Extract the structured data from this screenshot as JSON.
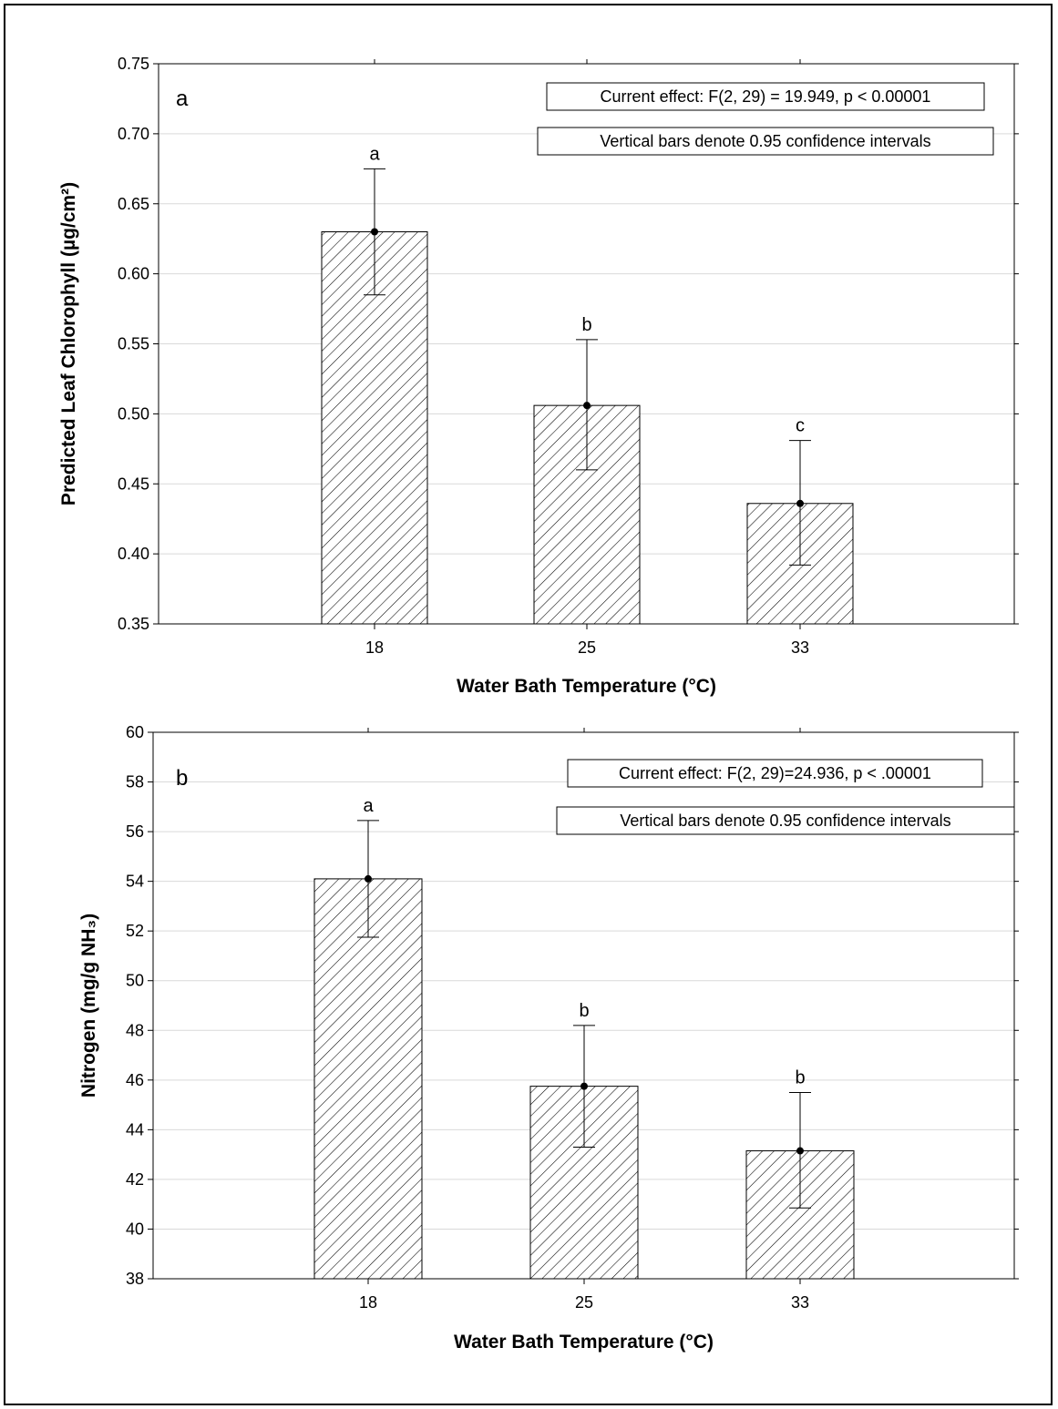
{
  "colors": {
    "frame": "#000000",
    "grid": "#d9d9d9",
    "bar_fill": "#ffffff",
    "bar_hatch": "#000000"
  },
  "chart_data": [
    {
      "type": "bar",
      "panel_label": "a",
      "categories": [
        "18",
        "25",
        "33"
      ],
      "values": [
        0.63,
        0.506,
        0.436
      ],
      "ci_low": [
        0.585,
        0.46,
        0.392
      ],
      "ci_high": [
        0.675,
        0.553,
        0.481
      ],
      "group_letters": [
        "a",
        "b",
        "c"
      ],
      "xlabel": "Water Bath Temperature (°C)",
      "ylabel": "Predicted Leaf Chlorophyll (µg/cm²)",
      "ylim": [
        0.35,
        0.75
      ],
      "yticks": [
        "0.35",
        "0.40",
        "0.45",
        "0.50",
        "0.55",
        "0.60",
        "0.65",
        "0.70",
        "0.75"
      ],
      "grid": true,
      "annotations": [
        "Current effect: F(2, 29) = 19.949, p < 0.00001",
        "Vertical bars denote 0.95 confidence intervals"
      ]
    },
    {
      "type": "bar",
      "panel_label": "b",
      "categories": [
        "18",
        "25",
        "33"
      ],
      "values": [
        54.1,
        45.75,
        43.15
      ],
      "ci_low": [
        51.75,
        43.3,
        40.85
      ],
      "ci_high": [
        56.45,
        48.2,
        45.5
      ],
      "group_letters": [
        "a",
        "b",
        "b"
      ],
      "xlabel": "Water Bath Temperature (°C)",
      "ylabel": "Nitrogen (mg/g NH₃)",
      "ylim": [
        38,
        60
      ],
      "yticks": [
        "38",
        "40",
        "42",
        "44",
        "46",
        "48",
        "50",
        "52",
        "54",
        "56",
        "58",
        "60"
      ],
      "grid": true,
      "annotations": [
        "Current effect: F(2, 29)=24.936, p < .00001",
        "Vertical bars denote 0.95 confidence intervals"
      ]
    }
  ]
}
